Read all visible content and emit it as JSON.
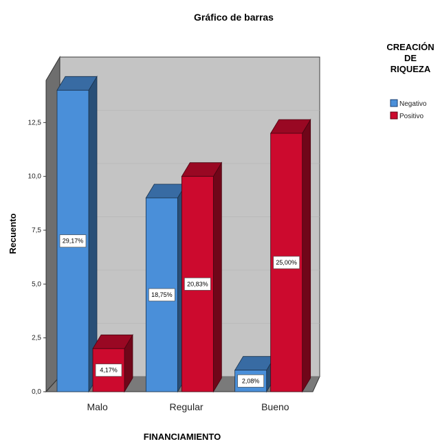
{
  "chart_data": {
    "type": "bar",
    "title": "Gráfico de barras",
    "xlabel": "FINANCIAMIENTO",
    "ylabel": "Recuento",
    "categories": [
      "Malo",
      "Regular",
      "Bueno"
    ],
    "ylim": [
      0,
      15
    ],
    "yticks": [
      "0,0",
      "2,5",
      "5,0",
      "7,5",
      "10,0",
      "12,5"
    ],
    "yticks_values": [
      0,
      2.5,
      5,
      7.5,
      10,
      12.5
    ],
    "legend": {
      "title_lines": [
        "CREACIÓN",
        "DE",
        "RIQUEZA"
      ],
      "placement": "top-right"
    },
    "series": [
      {
        "name": "Negativo",
        "color": "#4a8fd9",
        "values": [
          14,
          9,
          1
        ],
        "labels": [
          "29,17%",
          "18,75%",
          "2,08%"
        ]
      },
      {
        "name": "Positivo",
        "color": "#cc0a2e",
        "values": [
          2,
          10,
          12
        ],
        "labels": [
          "4,17%",
          "20,83%",
          "25,00%"
        ]
      }
    ]
  }
}
